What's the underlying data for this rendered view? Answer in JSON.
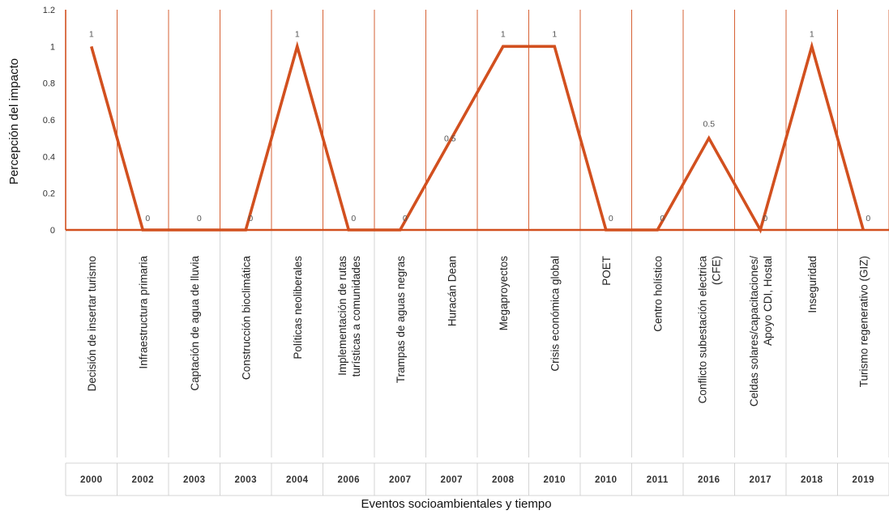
{
  "chart_data": {
    "type": "line",
    "ylabel": "Percepción del impacto",
    "xlabel": "Eventos socioambientales y tiempo",
    "ylim": [
      0,
      1.2
    ],
    "yticks": [
      "0",
      "0.2",
      "0.4",
      "0.6",
      "0.8",
      "1",
      "1.2"
    ],
    "grid": "vertical lines between categories",
    "line_color": "#d2501f",
    "categories": [
      "Decisión de insertar turismo",
      "Infraestructura primaria",
      "Captación de agua de lluvia",
      "Construcción bioclimática",
      "Políticas neoliberales",
      "Implementación de rutas turísticas a comunidades",
      "Trampas de aguas negras",
      "Huracán Dean",
      "Megaproyectos",
      "Crisis económica global",
      "POET",
      "Centro holístico",
      "Conflicto subestación electrica (CFE)",
      "Celdas solares/capacitaciones/ Apoyo CDI, Hostal",
      "Inseguridad",
      "Turismo regenerativo (GIZ)"
    ],
    "category_lines": [
      [
        "Decisión de insertar turismo"
      ],
      [
        "Infraestructura primaria"
      ],
      [
        "Captación de agua de lluvia"
      ],
      [
        "Construcción bioclimática"
      ],
      [
        "Políticas neoliberales"
      ],
      [
        "Implementación de rutas",
        "turísticas a comunidades"
      ],
      [
        "Trampas de aguas negras"
      ],
      [
        "Huracán Dean"
      ],
      [
        "Megaproyectos"
      ],
      [
        "Crisis económica global"
      ],
      [
        "POET"
      ],
      [
        "Centro holístico"
      ],
      [
        "Conflicto subestación electrica",
        "(CFE)"
      ],
      [
        "Celdas solares/capacitaciones/",
        "Apoyo CDI, Hostal"
      ],
      [
        "Inseguridad"
      ],
      [
        "Turismo regenerativo (GIZ)"
      ]
    ],
    "years": [
      "2000",
      "2002",
      "2003",
      "2003",
      "2004",
      "2006",
      "2007",
      "2007",
      "2008",
      "2010",
      "2010",
      "2011",
      "2016",
      "2017",
      "2018",
      "2019"
    ],
    "series": [
      {
        "values": [
          1,
          0,
          0,
          0,
          1,
          0,
          0,
          0.5,
          1,
          1,
          0,
          0,
          0.5,
          0,
          1,
          0
        ],
        "data_labels": [
          "1",
          "0",
          "0",
          "0",
          "1",
          "0",
          "0",
          "0.5",
          "1",
          "1",
          "0",
          "0",
          "0.5",
          "0",
          "1",
          "0"
        ]
      }
    ]
  }
}
